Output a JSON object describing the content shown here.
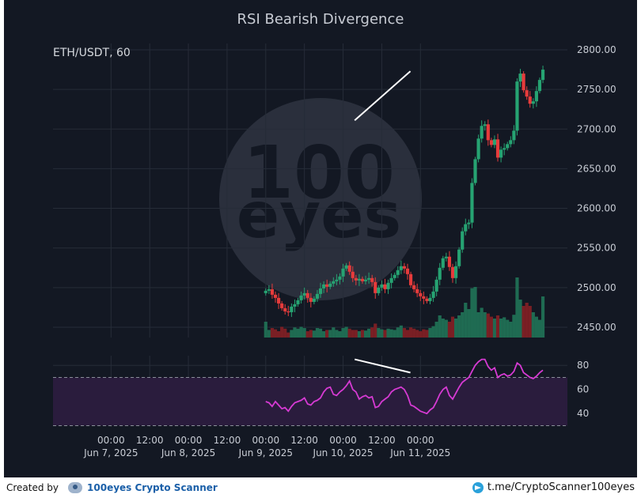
{
  "chart_data": [
    {
      "type": "candlestick",
      "title": "RSI Bearish Divergence",
      "symbol_label": "ETH/USDT, 60",
      "ylim": [
        2437,
        2808
      ],
      "y_ticks": [
        2450,
        2500,
        2550,
        2600,
        2650,
        2700,
        2750,
        2800
      ],
      "y_tick_labels": [
        "2450.00",
        "2500.00",
        "2550.00",
        "2600.00",
        "2650.00",
        "2700.00",
        "2750.00",
        "2800.00"
      ],
      "x_range": [
        -0.75,
        5.9
      ],
      "x_ticks": [
        0,
        0.5,
        1,
        1.5,
        2,
        2.5,
        3,
        3.5,
        4
      ],
      "x_tick_labels": [
        [
          "00:00",
          "Jun 7, 2025"
        ],
        [
          "12:00",
          ""
        ],
        [
          "00:00",
          "Jun 8, 2025"
        ],
        [
          "12:00",
          ""
        ],
        [
          "00:00",
          "Jun 9, 2025"
        ],
        [
          "12:00",
          ""
        ],
        [
          "00:00",
          "Jun 10, 2025"
        ],
        [
          "12:00",
          ""
        ],
        [
          "00:00",
          "Jun 11, 2025"
        ]
      ],
      "closes": [
        2496,
        2498,
        2491,
        2487,
        2480,
        2474,
        2470,
        2469,
        2476,
        2479,
        2484,
        2490,
        2493,
        2487,
        2482,
        2486,
        2492,
        2499,
        2504,
        2501,
        2505,
        2508,
        2510,
        2514,
        2524,
        2528,
        2520,
        2512,
        2509,
        2511,
        2508,
        2510,
        2512,
        2507,
        2493,
        2500,
        2504,
        2498,
        2506,
        2512,
        2516,
        2522,
        2527,
        2524,
        2517,
        2503,
        2498,
        2493,
        2489,
        2486,
        2483,
        2487,
        2495,
        2510,
        2525,
        2537,
        2539,
        2526,
        2512,
        2527,
        2548,
        2571,
        2580,
        2582,
        2632,
        2662,
        2688,
        2704,
        2706,
        2686,
        2680,
        2687,
        2664,
        2674,
        2676,
        2681,
        2686,
        2698,
        2760,
        2770,
        2749,
        2741,
        2732,
        2735,
        2748,
        2762,
        2775
      ],
      "volumes_relative": [
        0.25,
        0.12,
        0.15,
        0.13,
        0.1,
        0.17,
        0.14,
        0.08,
        0.12,
        0.16,
        0.14,
        0.17,
        0.15,
        0.1,
        0.12,
        0.11,
        0.15,
        0.14,
        0.1,
        0.12,
        0.12,
        0.16,
        0.12,
        0.1,
        0.15,
        0.17,
        0.14,
        0.12,
        0.12,
        0.1,
        0.12,
        0.11,
        0.14,
        0.16,
        0.22,
        0.15,
        0.13,
        0.12,
        0.14,
        0.13,
        0.12,
        0.16,
        0.19,
        0.15,
        0.12,
        0.16,
        0.14,
        0.12,
        0.1,
        0.13,
        0.12,
        0.15,
        0.18,
        0.25,
        0.35,
        0.3,
        0.28,
        0.25,
        0.33,
        0.3,
        0.35,
        0.4,
        0.55,
        0.45,
        0.78,
        0.8,
        0.4,
        0.47,
        0.4,
        0.38,
        0.33,
        0.3,
        0.35,
        0.3,
        0.32,
        0.28,
        0.25,
        0.36,
        0.95,
        0.6,
        0.5,
        0.55,
        0.5,
        0.4,
        0.33,
        0.28,
        0.65
      ],
      "divergence_line_price": {
        "from": [
          3.15,
          2711
        ],
        "to": [
          3.87,
          2773
        ]
      },
      "legend_position": "top-left",
      "grid": true
    },
    {
      "type": "line",
      "series": [
        {
          "values": [
            50,
            49,
            46,
            50,
            47,
            44,
            45,
            42,
            46,
            49,
            50,
            51,
            53,
            48,
            47,
            50,
            51,
            53,
            58,
            61,
            62,
            56,
            55,
            58,
            60,
            63,
            67,
            60,
            58,
            52,
            54,
            55,
            53,
            54,
            45,
            46,
            50,
            52,
            54,
            58,
            60,
            61,
            62,
            60,
            55,
            47,
            46,
            44,
            42,
            41,
            40,
            43,
            45,
            50,
            56,
            60,
            62,
            55,
            52,
            57,
            62,
            66,
            68,
            70,
            75,
            80,
            83,
            85,
            85,
            79,
            76,
            78,
            70,
            72,
            73,
            71,
            72,
            75,
            82,
            80,
            74,
            72,
            70,
            69,
            71,
            74,
            76
          ]
        }
      ],
      "ylim": [
        29,
        88
      ],
      "y_ticks": [
        40,
        60,
        80
      ],
      "y_tick_labels": [
        "40",
        "60",
        "80"
      ],
      "reference_lines": [
        70,
        30
      ],
      "band": [
        30,
        70
      ],
      "divergence_line_rsi": {
        "from": [
          3.15,
          85
        ],
        "to": [
          3.87,
          74
        ]
      }
    }
  ],
  "watermark": {
    "line1": "100",
    "line2": "eyes"
  },
  "colors": {
    "background": "#131823",
    "up": "#26a372",
    "down": "#e63b3b",
    "up_volume": "#1f6b52",
    "down_volume": "#7a1f24",
    "rsi_line": "#d63ad3",
    "rsi_band": "#2a1c3d",
    "grid": "#262c38",
    "text": "#c8ccd4",
    "divergence": "#ffffff"
  },
  "footer": {
    "created_by": "Created by",
    "brand": "100eyes Crypto Scanner",
    "telegram": "t.me/CryptoScanner100eyes"
  }
}
